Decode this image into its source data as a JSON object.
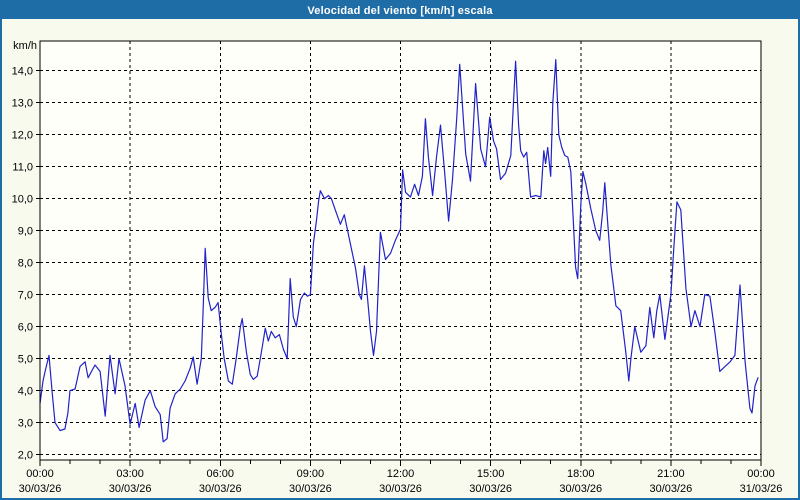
{
  "window": {
    "title": "Velocidad del viento [km/h] escala"
  },
  "colors": {
    "frame": "#1f6da6",
    "titlebar_bg": "#1f6da6",
    "titlebar_text": "#ffffff",
    "page_bg": "#f8faee",
    "plot_bg": "#fefff8",
    "grid": "#000000",
    "axis_text": "#000000",
    "line": "#2222cc"
  },
  "chart_data": {
    "type": "line",
    "title": "Velocidad del viento [km/h] escala",
    "y_unit_label": "km/h",
    "grid": {
      "style": "dashed",
      "horizontal": true,
      "vertical": true
    },
    "legend_position": "none",
    "y_axis": {
      "min_value": 1.83,
      "max_value": 14.93,
      "ticks": [
        {
          "value": 2,
          "label": "2,0"
        },
        {
          "value": 3,
          "label": "3,0"
        },
        {
          "value": 4,
          "label": "4,0"
        },
        {
          "value": 5,
          "label": "5,0"
        },
        {
          "value": 6,
          "label": "6,0"
        },
        {
          "value": 7,
          "label": "7,0"
        },
        {
          "value": 8,
          "label": "8,0"
        },
        {
          "value": 9,
          "label": "9,0"
        },
        {
          "value": 10,
          "label": "10,0"
        },
        {
          "value": 11,
          "label": "11,0"
        },
        {
          "value": 12,
          "label": "12,0"
        },
        {
          "value": 13,
          "label": "13,0"
        },
        {
          "value": 14,
          "label": "14,0"
        }
      ]
    },
    "x_axis": {
      "min_hours": 0,
      "max_hours": 24,
      "minor_tick_every_hours": 1,
      "major_ticks": [
        {
          "hours": 0,
          "time": "00:00",
          "date": "30/03/26"
        },
        {
          "hours": 3,
          "time": "03:00",
          "date": "30/03/26"
        },
        {
          "hours": 6,
          "time": "06:00",
          "date": "30/03/26"
        },
        {
          "hours": 9,
          "time": "09:00",
          "date": "30/03/26"
        },
        {
          "hours": 12,
          "time": "12:00",
          "date": "30/03/26"
        },
        {
          "hours": 15,
          "time": "15:00",
          "date": "30/03/26"
        },
        {
          "hours": 18,
          "time": "18:00",
          "date": "30/03/26"
        },
        {
          "hours": 21,
          "time": "21:00",
          "date": "30/03/26"
        },
        {
          "hours": 24,
          "time": "00:00",
          "date": "31/03/26"
        }
      ]
    },
    "series": [
      {
        "name": "velocidad-del-viento-kmh",
        "color": "#2222cc",
        "points_t_v": [
          [
            0,
            3.6
          ],
          [
            0.1,
            4.3
          ],
          [
            0.17,
            4.6
          ],
          [
            0.3,
            5.1
          ],
          [
            0.4,
            4.0
          ],
          [
            0.5,
            3.0
          ],
          [
            0.67,
            2.75
          ],
          [
            0.83,
            2.8
          ],
          [
            0.93,
            3.3
          ],
          [
            1,
            4.0
          ],
          [
            1.17,
            4.05
          ],
          [
            1.33,
            4.75
          ],
          [
            1.5,
            4.9
          ],
          [
            1.6,
            4.4
          ],
          [
            1.83,
            4.8
          ],
          [
            2,
            4.6
          ],
          [
            2.17,
            3.2
          ],
          [
            2.33,
            5.1
          ],
          [
            2.5,
            3.9
          ],
          [
            2.63,
            5.0
          ],
          [
            2.83,
            4.15
          ],
          [
            3,
            2.95
          ],
          [
            3.17,
            3.6
          ],
          [
            3.3,
            2.85
          ],
          [
            3.5,
            3.7
          ],
          [
            3.67,
            4.0
          ],
          [
            3.83,
            3.5
          ],
          [
            4,
            3.25
          ],
          [
            4.1,
            2.4
          ],
          [
            4.23,
            2.5
          ],
          [
            4.33,
            3.45
          ],
          [
            4.5,
            3.9
          ],
          [
            4.67,
            4.05
          ],
          [
            4.83,
            4.3
          ],
          [
            5,
            4.7
          ],
          [
            5.1,
            5.05
          ],
          [
            5.23,
            4.2
          ],
          [
            5.37,
            5.0
          ],
          [
            5.43,
            6.5
          ],
          [
            5.5,
            8.45
          ],
          [
            5.6,
            6.9
          ],
          [
            5.7,
            6.5
          ],
          [
            5.83,
            6.6
          ],
          [
            5.93,
            6.75
          ],
          [
            6.03,
            5.8
          ],
          [
            6.13,
            5.0
          ],
          [
            6.27,
            4.3
          ],
          [
            6.4,
            4.2
          ],
          [
            6.53,
            5.0
          ],
          [
            6.67,
            6.0
          ],
          [
            6.73,
            6.25
          ],
          [
            6.87,
            5.2
          ],
          [
            7,
            4.5
          ],
          [
            7.1,
            4.35
          ],
          [
            7.23,
            4.45
          ],
          [
            7.37,
            5.2
          ],
          [
            7.5,
            5.95
          ],
          [
            7.6,
            5.55
          ],
          [
            7.7,
            5.85
          ],
          [
            7.83,
            5.65
          ],
          [
            7.97,
            5.75
          ],
          [
            8.1,
            5.3
          ],
          [
            8.23,
            5.0
          ],
          [
            8.33,
            7.5
          ],
          [
            8.43,
            6.3
          ],
          [
            8.53,
            6.0
          ],
          [
            8.67,
            6.85
          ],
          [
            8.8,
            7.05
          ],
          [
            8.9,
            6.95
          ],
          [
            9,
            7.0
          ],
          [
            9.1,
            8.6
          ],
          [
            9.2,
            9.3
          ],
          [
            9.27,
            9.9
          ],
          [
            9.33,
            10.25
          ],
          [
            9.47,
            10.0
          ],
          [
            9.6,
            10.1
          ],
          [
            9.7,
            10.0
          ],
          [
            9.83,
            9.65
          ],
          [
            10,
            9.2
          ],
          [
            10.13,
            9.5
          ],
          [
            10.33,
            8.6
          ],
          [
            10.5,
            7.85
          ],
          [
            10.63,
            7.0
          ],
          [
            10.7,
            6.85
          ],
          [
            10.8,
            7.9
          ],
          [
            10.9,
            6.9
          ],
          [
            11,
            5.85
          ],
          [
            11.1,
            5.1
          ],
          [
            11.2,
            5.85
          ],
          [
            11.33,
            8.95
          ],
          [
            11.5,
            8.1
          ],
          [
            11.67,
            8.3
          ],
          [
            11.83,
            8.7
          ],
          [
            12,
            9.05
          ],
          [
            12.07,
            10.9
          ],
          [
            12.17,
            10.2
          ],
          [
            12.33,
            10.05
          ],
          [
            12.47,
            10.45
          ],
          [
            12.6,
            10.1
          ],
          [
            12.73,
            10.7
          ],
          [
            12.83,
            12.5
          ],
          [
            12.93,
            11.3
          ],
          [
            13.07,
            10.1
          ],
          [
            13.2,
            11.3
          ],
          [
            13.33,
            12.3
          ],
          [
            13.47,
            10.8
          ],
          [
            13.6,
            9.3
          ],
          [
            13.73,
            10.6
          ],
          [
            13.87,
            12.5
          ],
          [
            13.97,
            14.2
          ],
          [
            14.07,
            12.8
          ],
          [
            14.17,
            11.4
          ],
          [
            14.33,
            10.55
          ],
          [
            14.5,
            13.6
          ],
          [
            14.67,
            11.55
          ],
          [
            14.83,
            11.0
          ],
          [
            14.97,
            12.55
          ],
          [
            15.1,
            11.8
          ],
          [
            15.2,
            11.55
          ],
          [
            15.33,
            10.6
          ],
          [
            15.5,
            10.8
          ],
          [
            15.67,
            11.35
          ],
          [
            15.83,
            14.3
          ],
          [
            15.93,
            12.3
          ],
          [
            16,
            11.5
          ],
          [
            16.1,
            11.3
          ],
          [
            16.2,
            11.45
          ],
          [
            16.33,
            10.05
          ],
          [
            16.5,
            10.1
          ],
          [
            16.67,
            10.05
          ],
          [
            16.77,
            11.5
          ],
          [
            16.83,
            11.1
          ],
          [
            16.9,
            11.6
          ],
          [
            17,
            10.7
          ],
          [
            17.07,
            13.0
          ],
          [
            17.17,
            14.35
          ],
          [
            17.27,
            12.0
          ],
          [
            17.37,
            11.6
          ],
          [
            17.47,
            11.35
          ],
          [
            17.57,
            11.3
          ],
          [
            17.67,
            10.85
          ],
          [
            17.77,
            9.0
          ],
          [
            17.83,
            7.85
          ],
          [
            17.9,
            7.5
          ],
          [
            18,
            9.8
          ],
          [
            18.07,
            10.85
          ],
          [
            18.17,
            10.45
          ],
          [
            18.33,
            9.7
          ],
          [
            18.5,
            9.0
          ],
          [
            18.63,
            8.7
          ],
          [
            18.73,
            9.6
          ],
          [
            18.8,
            10.5
          ],
          [
            18.9,
            9.2
          ],
          [
            19,
            7.95
          ],
          [
            19.17,
            6.65
          ],
          [
            19.33,
            6.5
          ],
          [
            19.5,
            5.2
          ],
          [
            19.6,
            4.3
          ],
          [
            19.67,
            5.0
          ],
          [
            19.8,
            6.0
          ],
          [
            20,
            5.2
          ],
          [
            20.17,
            5.4
          ],
          [
            20.3,
            6.6
          ],
          [
            20.43,
            5.65
          ],
          [
            20.53,
            6.5
          ],
          [
            20.63,
            7.0
          ],
          [
            20.8,
            5.6
          ],
          [
            20.9,
            6.3
          ],
          [
            21,
            7.0
          ],
          [
            21.1,
            8.5
          ],
          [
            21.2,
            9.9
          ],
          [
            21.33,
            9.65
          ],
          [
            21.5,
            7.2
          ],
          [
            21.67,
            6.0
          ],
          [
            21.8,
            6.5
          ],
          [
            21.97,
            6.0
          ],
          [
            22.13,
            7.0
          ],
          [
            22.3,
            6.95
          ],
          [
            22.47,
            5.8
          ],
          [
            22.63,
            4.6
          ],
          [
            22.8,
            4.75
          ],
          [
            22.97,
            4.9
          ],
          [
            23.13,
            5.1
          ],
          [
            23.3,
            7.3
          ],
          [
            23.47,
            4.9
          ],
          [
            23.63,
            3.45
          ],
          [
            23.7,
            3.3
          ],
          [
            23.8,
            4.15
          ],
          [
            23.9,
            4.4
          ]
        ]
      }
    ]
  }
}
